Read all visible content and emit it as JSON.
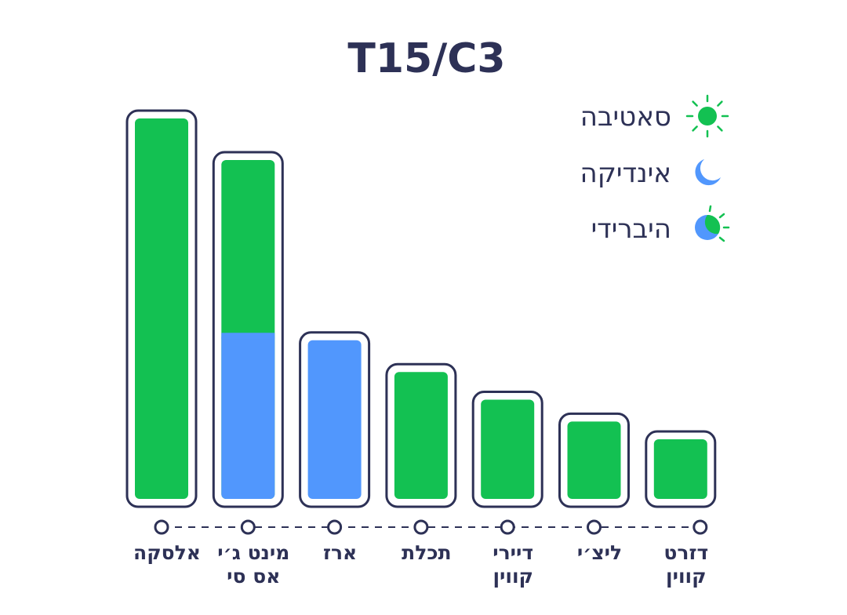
{
  "chart_data": {
    "type": "bar",
    "title": "T15/C3",
    "categories": [
      [
        "אלסקה"
      ],
      [
        "מינט ג׳י",
        "אס סי"
      ],
      [
        "ארז"
      ],
      [
        "תכלת"
      ],
      [
        "דיירי",
        "קווין"
      ],
      [
        "ליצ׳י"
      ],
      [
        "דזרט",
        "קווין"
      ]
    ],
    "values": [
      100,
      89.5,
      44,
      36,
      29,
      23.5,
      19
    ],
    "types": [
      "sativa",
      "hybrid",
      "indica",
      "sativa",
      "sativa",
      "sativa",
      "sativa"
    ],
    "hybrid_split": {
      "indica_fraction": 0.49
    },
    "ylim": [
      0,
      100
    ],
    "legend": {
      "position": "top-right",
      "items": [
        {
          "key": "sativa",
          "label": "סאטיבה",
          "icon": "sun-icon"
        },
        {
          "key": "indica",
          "label": "אינדיקה",
          "icon": "moon-icon"
        },
        {
          "key": "hybrid",
          "label": "היברידי",
          "icon": "hybrid-sun-moon-icon"
        }
      ]
    },
    "colors": {
      "sativa": "#13c152",
      "indica": "#5197fd",
      "outline": "#2d3156",
      "text": "#2d3156"
    },
    "grid": false
  }
}
